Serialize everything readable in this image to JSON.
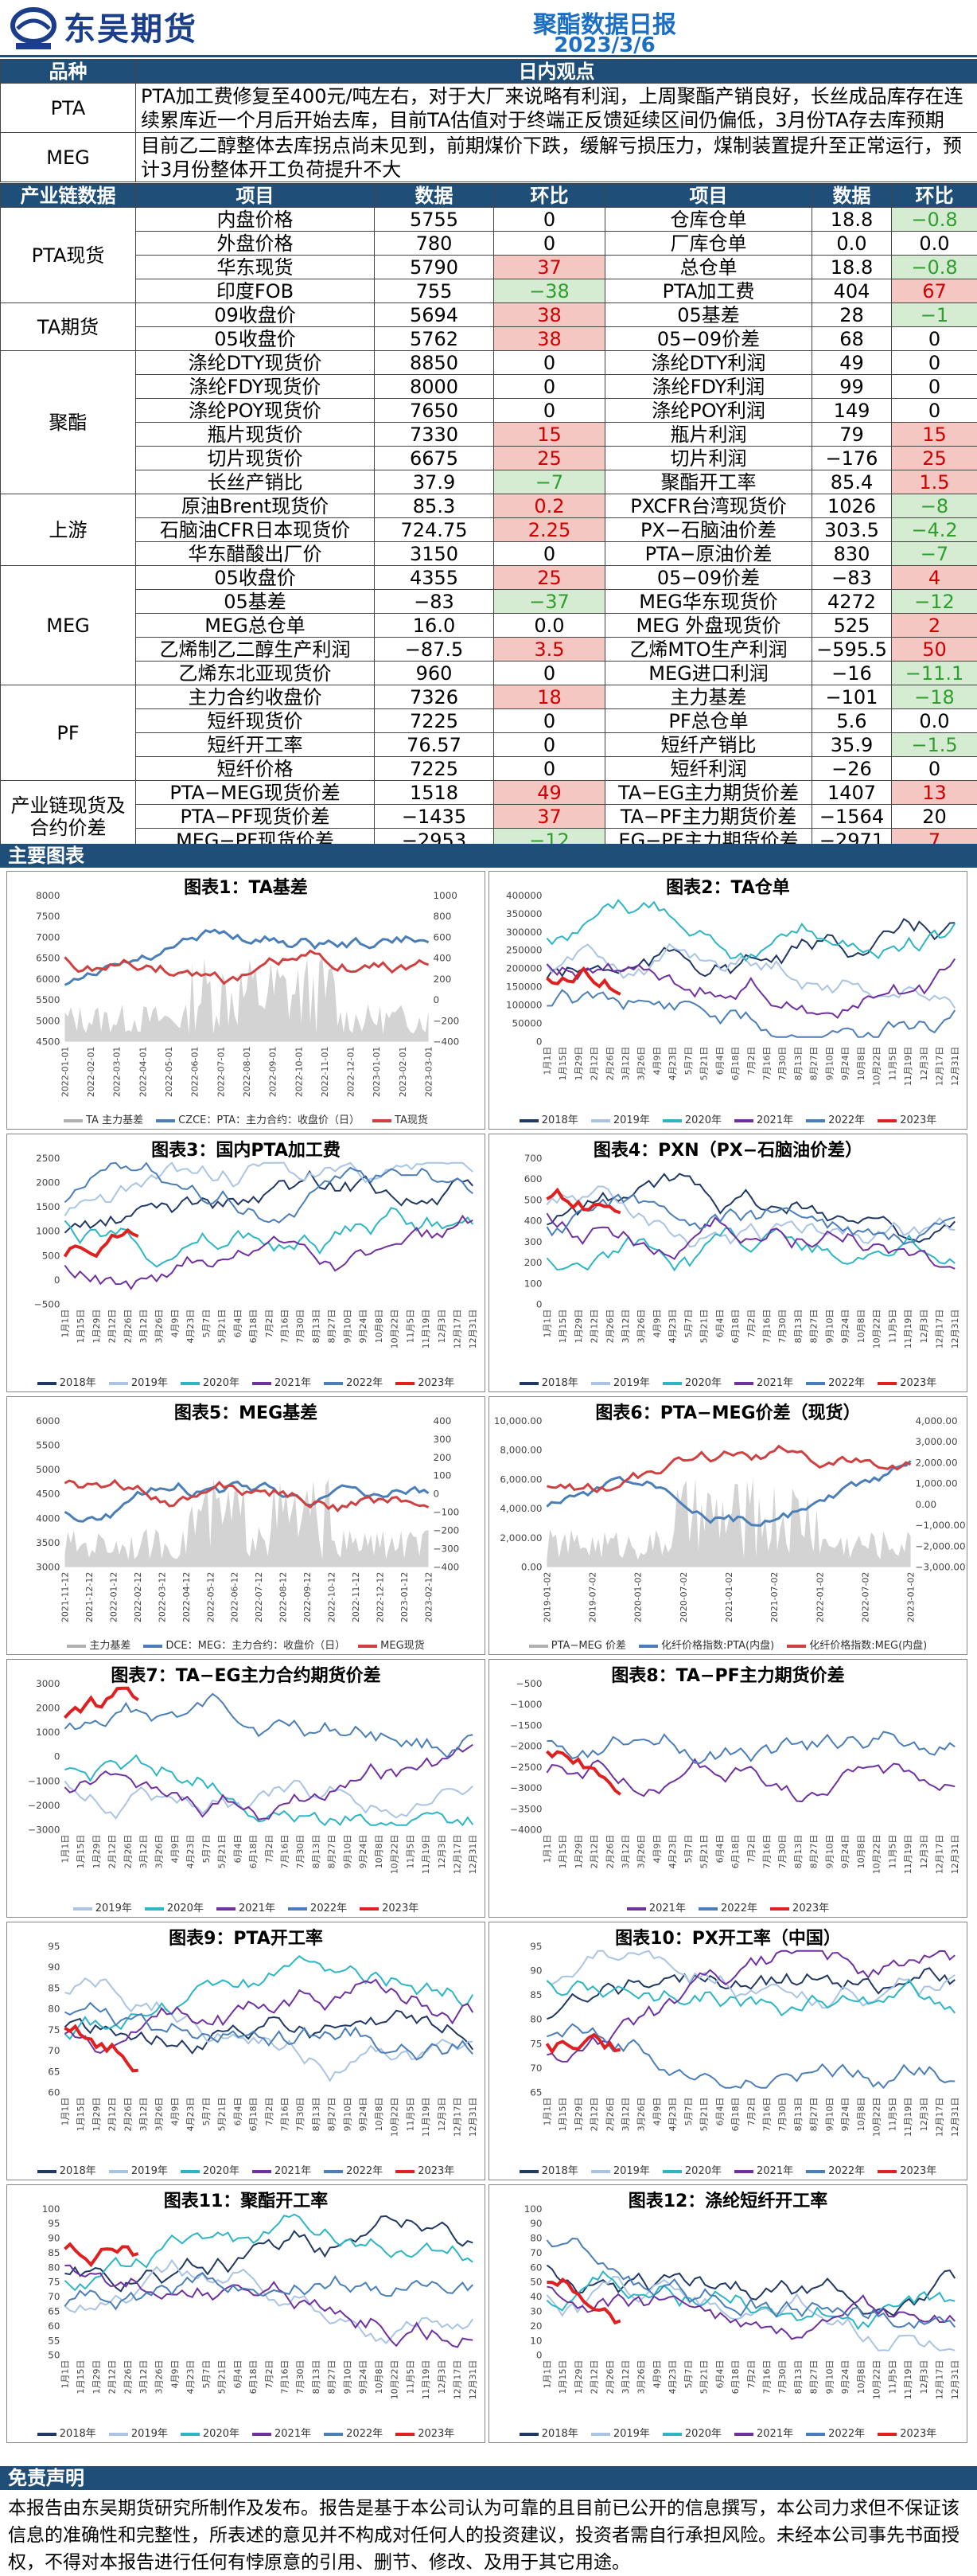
{
  "header": {
    "brand": "东吴期货",
    "title": "聚酯数据日报",
    "date": "2023/3/6"
  },
  "view": {
    "col1": "品种",
    "col2": "日内观点",
    "rows": [
      {
        "name": "PTA",
        "text": "PTA加工费修复至400元/吨左右，对于大厂来说略有利润，上周聚酯产销良好，长丝成品库存在连续累库近一个月后开始去库，目前TA估值对于终端正反馈延续区间仍偏低，3月份TA存去库预期"
      },
      {
        "name": "MEG",
        "text": "目前乙二醇整体去库拐点尚未见到，前期煤价下跌，缓解亏损压力，煤制装置提升至正常运行，预计3月份整体开工负荷提升不大"
      }
    ]
  },
  "data_table": {
    "headers": [
      "产业链数据",
      "项目",
      "数据",
      "环比",
      "项目",
      "数据",
      "环比"
    ],
    "groups": [
      {
        "name": "PTA现货",
        "rows": [
          [
            "内盘价格",
            "5755",
            "0",
            "",
            "仓库仓单",
            "18.8",
            "−0.8",
            "neg"
          ],
          [
            "外盘价格",
            "780",
            "0",
            "",
            "厂库仓单",
            "0.0",
            "0.0",
            ""
          ],
          [
            "华东现货",
            "5790",
            "37",
            "pos",
            "总仓单",
            "18.8",
            "−0.8",
            "neg"
          ],
          [
            "印度FOB",
            "755",
            "−38",
            "neg",
            "PTA加工费",
            "404",
            "67",
            "pos"
          ]
        ]
      },
      {
        "name": "TA期货",
        "rows": [
          [
            "09收盘价",
            "5694",
            "38",
            "pos",
            "05基差",
            "28",
            "−1",
            "neg"
          ],
          [
            "05收盘价",
            "5762",
            "38",
            "pos",
            "05−09价差",
            "68",
            "0",
            ""
          ]
        ]
      },
      {
        "name": "聚酯",
        "rows": [
          [
            "涤纶DTY现货价",
            "8850",
            "0",
            "",
            "涤纶DTY利润",
            "49",
            "0",
            ""
          ],
          [
            "涤纶FDY现货价",
            "8000",
            "0",
            "",
            "涤纶FDY利润",
            "99",
            "0",
            ""
          ],
          [
            "涤纶POY现货价",
            "7650",
            "0",
            "",
            "涤纶POY利润",
            "149",
            "0",
            ""
          ],
          [
            "瓶片现货价",
            "7330",
            "15",
            "pos",
            "瓶片利润",
            "79",
            "15",
            "pos"
          ],
          [
            "切片现货价",
            "6675",
            "25",
            "pos",
            "切片利润",
            "−176",
            "25",
            "pos"
          ],
          [
            "长丝产销比",
            "37.9",
            "−7",
            "neg",
            "聚酯开工率",
            "85.4",
            "1.5",
            "pos"
          ]
        ]
      },
      {
        "name": "上游",
        "rows": [
          [
            "原油Brent现货价",
            "85.3",
            "0.2",
            "pos",
            "PXCFR台湾现货价",
            "1026",
            "−8",
            "neg"
          ],
          [
            "石脑油CFR日本现货价",
            "724.75",
            "2.25",
            "pos",
            "PX−石脑油价差",
            "303.5",
            "−4.2",
            "neg"
          ],
          [
            "华东醋酸出厂价",
            "3150",
            "0",
            "",
            "PTA−原油价差",
            "830",
            "−7",
            "neg"
          ]
        ]
      },
      {
        "name": "MEG",
        "rows": [
          [
            "05收盘价",
            "4355",
            "25",
            "pos",
            "05−09价差",
            "−83",
            "4",
            "pos"
          ],
          [
            "05基差",
            "−83",
            "−37",
            "neg",
            "MEG华东现货价",
            "4272",
            "−12",
            "neg"
          ],
          [
            "MEG总仓单",
            "16.0",
            "0.0",
            "",
            "MEG 外盘现货价",
            "525",
            "2",
            "pos"
          ],
          [
            "乙烯制乙二醇生产利润",
            "−87.5",
            "3.5",
            "pos",
            "乙烯MTO生产利润",
            "−595.5",
            "50",
            "pos"
          ],
          [
            "乙烯东北亚现货价",
            "960",
            "0",
            "",
            "MEG进口利润",
            "−16",
            "−11.1",
            "neg"
          ]
        ]
      },
      {
        "name": "PF",
        "rows": [
          [
            "主力合约收盘价",
            "7326",
            "18",
            "pos",
            "主力基差",
            "−101",
            "−18",
            "neg"
          ],
          [
            "短纤现货价",
            "7225",
            "0",
            "",
            "PF总仓单",
            "5.6",
            "0.0",
            ""
          ],
          [
            "短纤开工率",
            "76.57",
            "0",
            "",
            "短纤产销比",
            "35.9",
            "−1.5",
            "neg"
          ],
          [
            "短纤价格",
            "7225",
            "0",
            "",
            "短纤利润",
            "−26",
            "0",
            ""
          ]
        ]
      },
      {
        "name": "产业链现货及合约价差",
        "rows": [
          [
            "PTA−MEG现货价差",
            "1518",
            "49",
            "pos",
            "TA−EG主力期货价差",
            "1407",
            "13",
            "pos"
          ],
          [
            "PTA−PF现货价差",
            "−1435",
            "37",
            "pos",
            "TA−PF主力期货价差",
            "−1564",
            "20",
            ""
          ],
          [
            "MEG−PF现货价差",
            "−2953",
            "−12",
            "neg",
            "EG−PF主力期货价差",
            "−2971",
            "7",
            "pos"
          ]
        ]
      }
    ]
  },
  "charts_section": "主要图表",
  "year_legend": [
    "2018年",
    "2019年",
    "2020年",
    "2021年",
    "2022年",
    "2023年"
  ],
  "year_colors": [
    "#1f3864",
    "#a9c4e4",
    "#2bb5c5",
    "#7030a0",
    "#4a7eb8",
    "#e02020"
  ],
  "month_ticks": [
    "1月1日",
    "1月15日",
    "1月29日",
    "2月12日",
    "2月26日",
    "3月12日",
    "3月26日",
    "4月9日",
    "4月23日",
    "5月7日",
    "5月21日",
    "6月4日",
    "6月18日",
    "7月2日",
    "7月16日",
    "7月30日",
    "8月13日",
    "8月27日",
    "9月10日",
    "9月24日",
    "10月8日",
    "10月22日",
    "11月5日",
    "11月19日",
    "12月3日",
    "12月17日",
    "12月31日"
  ],
  "charts": [
    {
      "title": "图表1：TA基差",
      "type": "line",
      "y_left": [
        "8000",
        "7500",
        "7000",
        "6500",
        "6000",
        "5500",
        "5000",
        "4500"
      ],
      "y_right": [
        "1000",
        "800",
        "600",
        "400",
        "200",
        "0",
        "−200",
        "−400"
      ],
      "x": [
        "2022-01-01",
        "2022-02-01",
        "2022-03-01",
        "2022-04-01",
        "2022-05-01",
        "2022-06-01",
        "2022-07-01",
        "2022-08-01",
        "2022-09-01",
        "2022-10-01",
        "2022-11-01",
        "2022-12-01",
        "2023-01-01",
        "2023-02-01",
        "2023-03-01"
      ],
      "legend": [
        "TA 主力基差",
        "CZCE：PTA：主力合约：收盘价（日）",
        "TA现货"
      ],
      "legend_colors": [
        "#b0b0b0",
        "#4a7eb8",
        "#d04040"
      ]
    },
    {
      "title": "图表2：TA仓单",
      "type": "line",
      "y_left": [
        "400000",
        "350000",
        "300000",
        "250000",
        "200000",
        "150000",
        "100000",
        "50000",
        "0"
      ],
      "legend": [
        "2018年",
        "2019年",
        "2020年",
        "2021年",
        "2022年",
        "2023年"
      ]
    },
    {
      "title": "图表3：国内PTA加工费",
      "type": "line",
      "y_left": [
        "2500",
        "2000",
        "1500",
        "1000",
        "500",
        "0",
        "−500"
      ],
      "legend": [
        "2018年",
        "2019年",
        "2020年",
        "2021年",
        "2022年",
        "2023年"
      ]
    },
    {
      "title": "图表4：PXN（PX−石脑油价差）",
      "type": "line",
      "y_left": [
        "700",
        "600",
        "500",
        "400",
        "300",
        "200",
        "100",
        "0"
      ],
      "legend": [
        "2018年",
        "2019年",
        "2020年",
        "2021年",
        "2022年",
        "2023年"
      ]
    },
    {
      "title": "图表5：MEG基差",
      "type": "line",
      "y_left": [
        "6000",
        "5500",
        "5000",
        "4500",
        "4000",
        "3500",
        "3000"
      ],
      "y_right": [
        "400",
        "300",
        "200",
        "100",
        "0",
        "−100",
        "−200",
        "−300",
        "−400"
      ],
      "x": [
        "2021-11-12",
        "2021-12-12",
        "2022-01-12",
        "2022-02-12",
        "2022-03-12",
        "2022-04-12",
        "2022-05-12",
        "2022-06-12",
        "2022-07-12",
        "2022-08-12",
        "2022-09-12",
        "2022-10-12",
        "2022-11-12",
        "2022-12-12",
        "2023-01-12",
        "2023-02-12"
      ],
      "legend": [
        "主力基差",
        "DCE：MEG：主力合约：收盘价（日）",
        "MEG现货"
      ],
      "legend_colors": [
        "#b0b0b0",
        "#4a7eb8",
        "#d04040"
      ]
    },
    {
      "title": "图表6：PTA−MEG价差（现货）",
      "type": "line",
      "y_left": [
        "10,000.00",
        "8,000.00",
        "6,000.00",
        "4,000.00",
        "2,000.00",
        "0.00"
      ],
      "y_right": [
        "4,000.00",
        "3,000.00",
        "2,000.00",
        "1,000.00",
        "0.00",
        "−1,000.00",
        "−2,000.00",
        "−3,000.00"
      ],
      "x": [
        "2019-01-02",
        "2019-07-02",
        "2020-01-02",
        "2020-07-02",
        "2021-01-02",
        "2021-07-02",
        "2022-01-02",
        "2022-07-02",
        "2023-01-02"
      ],
      "legend": [
        "PTA−MEG 价差",
        "化纤价格指数:PTA(内盘)",
        "化纤价格指数:MEG(内盘)"
      ],
      "legend_colors": [
        "#b0b0b0",
        "#4a7eb8",
        "#d04040"
      ]
    },
    {
      "title": "图表7：TA−EG主力合约期货价差",
      "type": "line",
      "y_left": [
        "3000",
        "2000",
        "1000",
        "0",
        "−1000",
        "−2000",
        "−3000"
      ],
      "legend": [
        "2019年",
        "2020年",
        "2021年",
        "2022年",
        "2023年"
      ]
    },
    {
      "title": "图表8：TA−PF主力期货价差",
      "type": "line",
      "y_left": [
        "−500",
        "−1000",
        "−1500",
        "−2000",
        "−2500",
        "−3000",
        "−3500",
        "−4000"
      ],
      "legend": [
        "2021年",
        "2022年",
        "2023年"
      ]
    },
    {
      "title": "图表9：PTA开工率",
      "type": "line",
      "y_left": [
        "95",
        "90",
        "85",
        "80",
        "75",
        "70",
        "65",
        "60"
      ],
      "legend": [
        "2018年",
        "2019年",
        "2020年",
        "2021年",
        "2022年",
        "2023年"
      ]
    },
    {
      "title": "图表10：PX开工率（中国）",
      "type": "line",
      "y_left": [
        "95",
        "90",
        "85",
        "80",
        "75",
        "70",
        "65"
      ],
      "legend": [
        "2018年",
        "2019年",
        "2020年",
        "2021年",
        "2022年",
        "2023年"
      ]
    },
    {
      "title": "图表11：聚酯开工率",
      "type": "line",
      "y_left": [
        "100",
        "95",
        "90",
        "85",
        "80",
        "75",
        "70",
        "65",
        "60",
        "55",
        "50"
      ],
      "legend": [
        "2018年",
        "2019年",
        "2020年",
        "2021年",
        "2022年",
        "2023年"
      ]
    },
    {
      "title": "图表12：涤纶短纤开工率",
      "type": "line",
      "y_left": [
        "100",
        "90",
        "80",
        "70",
        "60",
        "50",
        "40",
        "30",
        "20",
        "10",
        "0"
      ],
      "legend": [
        "2018年",
        "2019年",
        "2020年",
        "2021年",
        "2022年",
        "2023年"
      ]
    }
  ],
  "chart_data": [
    {
      "type": "line",
      "title": "图表1：TA基差",
      "x": [
        "2022-01",
        "2022-03",
        "2022-05",
        "2022-07",
        "2022-09",
        "2022-11",
        "2023-01",
        "2023-03"
      ],
      "series": [
        {
          "name": "TA现货",
          "values": [
            5100,
            6100,
            6700,
            6900,
            6300,
            5400,
            5500,
            5790
          ]
        },
        {
          "name": "CZCE：PTA：主力合约：收盘价（日）",
          "values": [
            5000,
            5900,
            6300,
            6000,
            5800,
            5300,
            5400,
            5762
          ]
        }
      ]
    },
    {
      "type": "line",
      "title": "图表5：MEG基差",
      "x": [
        "2021-11",
        "2022-02",
        "2022-05",
        "2022-08",
        "2022-11",
        "2023-02"
      ],
      "series": [
        {
          "name": "MEG现货",
          "values": [
            5300,
            5200,
            4900,
            4300,
            3900,
            4272
          ]
        },
        {
          "name": "DCE：MEG：主力合约：收盘价（日）",
          "values": [
            5200,
            5100,
            4800,
            4200,
            3950,
            4355
          ]
        }
      ]
    }
  ],
  "disclaimer": {
    "title": "免责声明",
    "text": "本报告由东吴期货研究所制作及发布。报告是基于本公司认为可靠的且目前已公开的信息撰写，本公司力求但不保证该信息的准确性和完整性，所表述的意见并不构成对任何人的投资建议，投资者需自行承担风险。未经本公司事先书面授权，不得对本报告进行任何有悖原意的引用、删节、修改、及用于其它用途。"
  }
}
